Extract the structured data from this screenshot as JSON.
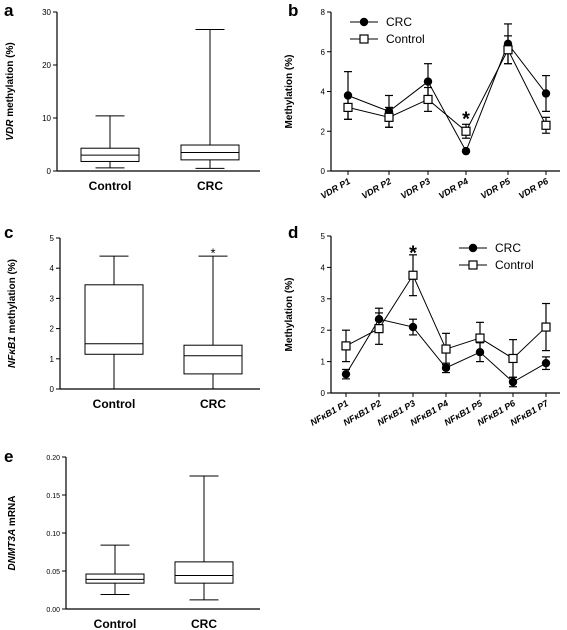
{
  "chart_data": [
    {
      "panel": "a",
      "type": "boxplot",
      "ylabel_italic": "VDR",
      "ylabel_rest": " methylation (%)",
      "ylim": [
        0,
        30
      ],
      "yticks": [
        0,
        10,
        20,
        30
      ],
      "categories": [
        "Control",
        "CRC"
      ],
      "boxes": [
        {
          "name": "Control",
          "min": 0.6,
          "q1": 1.8,
          "median": 3.0,
          "q3": 4.3,
          "max": 10.4
        },
        {
          "name": "CRC",
          "min": 0.5,
          "q1": 2.1,
          "median": 3.5,
          "q3": 4.9,
          "max": 26.7
        }
      ]
    },
    {
      "panel": "b",
      "type": "line",
      "ylabel": "Methylation (%)",
      "ylim": [
        0,
        8
      ],
      "yticks": [
        0,
        2,
        4,
        6,
        8
      ],
      "categories": [
        "VDR P1",
        "VDR P2",
        "VDR P3",
        "VDR P4",
        "VDR P5",
        "VDR P6"
      ],
      "legend_position": "top-left",
      "annotations": [
        {
          "text": "*",
          "category_index": 3,
          "y": 2.7
        }
      ],
      "series": [
        {
          "name": "CRC",
          "marker": "filled-circle",
          "values": [
            3.8,
            3.0,
            4.5,
            1.0,
            6.4,
            3.9
          ],
          "err": [
            1.2,
            0.8,
            0.9,
            0.05,
            1.0,
            0.9
          ]
        },
        {
          "name": "Control",
          "marker": "open-square",
          "values": [
            3.2,
            2.7,
            3.6,
            2.0,
            6.1,
            2.3
          ],
          "err": [
            0.6,
            0.5,
            0.6,
            0.35,
            0.7,
            0.4
          ]
        }
      ]
    },
    {
      "panel": "c",
      "type": "boxplot",
      "ylabel_italic": "NFκB1",
      "ylabel_rest": " methylation (%)",
      "ylim": [
        0,
        5
      ],
      "yticks": [
        0,
        1,
        2,
        3,
        4,
        5
      ],
      "categories": [
        "Control",
        "CRC"
      ],
      "annotations": [
        {
          "text": "*",
          "category_index": 1,
          "y": 4.55
        }
      ],
      "boxes": [
        {
          "name": "Control",
          "min": 0.0,
          "q1": 1.15,
          "median": 1.5,
          "q3": 3.45,
          "max": 4.4
        },
        {
          "name": "CRC",
          "min": 0.0,
          "q1": 0.5,
          "median": 1.1,
          "q3": 1.45,
          "max": 4.4
        }
      ]
    },
    {
      "panel": "d",
      "type": "line",
      "ylabel": "Methylation (%)",
      "ylim": [
        0,
        5
      ],
      "yticks": [
        0,
        1,
        2,
        3,
        4,
        5
      ],
      "categories": [
        "NFκB1 P1",
        "NFκB1 P2",
        "NFκB1 P3",
        "NFκB1 P4",
        "NFκB1 P5",
        "NFκB1 P6",
        "NFκB1 P7"
      ],
      "legend_position": "top-right",
      "annotations": [
        {
          "text": "*",
          "category_index": 2,
          "y": 4.5
        }
      ],
      "series": [
        {
          "name": "CRC",
          "marker": "filled-circle",
          "values": [
            0.6,
            2.35,
            2.1,
            0.8,
            1.3,
            0.35,
            0.95
          ],
          "err": [
            0.15,
            0.35,
            0.25,
            0.15,
            0.3,
            0.15,
            0.2
          ]
        },
        {
          "name": "Control",
          "marker": "open-square",
          "values": [
            1.5,
            2.05,
            3.75,
            1.4,
            1.75,
            1.1,
            2.1
          ],
          "err": [
            0.5,
            0.5,
            0.65,
            0.5,
            0.5,
            0.6,
            0.75
          ]
        }
      ]
    },
    {
      "panel": "e",
      "type": "boxplot",
      "ylabel_italic": "DNMT3A",
      "ylabel_rest": " mRNA",
      "ylim": [
        0,
        0.2
      ],
      "yticks": [
        0.0,
        0.05,
        0.1,
        0.15,
        0.2
      ],
      "ytick_labels": [
        "0.00",
        "0.05",
        "0.10",
        "0.15",
        "0.20"
      ],
      "categories": [
        "Control",
        "CRC"
      ],
      "boxes": [
        {
          "name": "Control",
          "min": 0.019,
          "q1": 0.034,
          "median": 0.039,
          "q3": 0.046,
          "max": 0.084
        },
        {
          "name": "CRC",
          "min": 0.012,
          "q1": 0.034,
          "median": 0.044,
          "q3": 0.062,
          "max": 0.175
        }
      ]
    }
  ]
}
